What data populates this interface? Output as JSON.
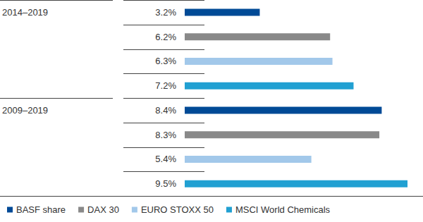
{
  "chart_data": {
    "type": "bar",
    "orientation": "horizontal",
    "categories": [
      "2014–2019",
      "2009–2019"
    ],
    "series": [
      {
        "name": "BASF share",
        "color": "#004a96",
        "values": [
          3.2,
          8.4
        ],
        "value_labels": [
          "3.2%",
          "8.4%"
        ]
      },
      {
        "name": "DAX 30",
        "color": "#898989",
        "values": [
          6.2,
          8.3
        ],
        "value_labels": [
          "6.2%",
          "8.3%"
        ]
      },
      {
        "name": "EURO STOXX 50",
        "color": "#a2c8ea",
        "values": [
          6.3,
          5.4
        ],
        "value_labels": [
          "6.3%",
          "5.4%"
        ]
      },
      {
        "name": "MSCI World Chemicals",
        "color": "#21a0d2",
        "values": [
          7.2,
          9.5
        ],
        "value_labels": [
          "7.2%",
          "9.5%"
        ]
      }
    ],
    "xlim": [
      0,
      9.5
    ],
    "xticks": [
      0,
      9.5
    ],
    "data_labels": true,
    "tick_labels": false,
    "grid": false,
    "legend": "bottom"
  }
}
